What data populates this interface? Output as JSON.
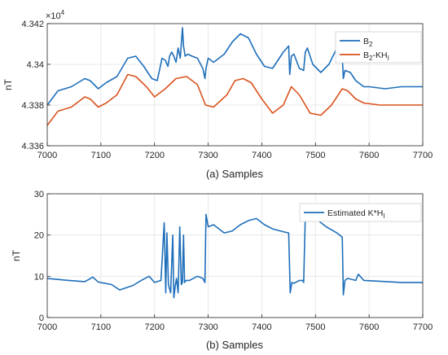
{
  "chart_data": [
    {
      "type": "line",
      "xlabel": "(a) Samples",
      "ylabel": "nT",
      "exponent_label": "×10",
      "exponent_power": "4",
      "xlim": [
        7000,
        7700
      ],
      "ylim": [
        4.336,
        4.342
      ],
      "xticks": [
        "7000",
        "7100",
        "7200",
        "7300",
        "7400",
        "7500",
        "7600",
        "7700"
      ],
      "yticks": [
        "4.336",
        "4.338",
        "4.34",
        "4.342"
      ],
      "ytick_values": [
        4.336,
        4.338,
        4.34,
        4.342
      ],
      "grid": true,
      "legend_position": "top-right",
      "series": [
        {
          "name": "B",
          "name_sub": "2",
          "name_suffix": "",
          "name_suffix_sub": "",
          "color": "#1f6fba",
          "x": [
            7000,
            7020,
            7045,
            7070,
            7080,
            7095,
            7110,
            7130,
            7150,
            7165,
            7180,
            7195,
            7205,
            7210,
            7214,
            7220,
            7225,
            7228,
            7232,
            7236,
            7240,
            7244,
            7248,
            7252,
            7254,
            7257,
            7262,
            7270,
            7280,
            7290,
            7294,
            7296,
            7300,
            7310,
            7330,
            7345,
            7360,
            7375,
            7390,
            7405,
            7420,
            7440,
            7450,
            7452,
            7455,
            7460,
            7470,
            7478,
            7481,
            7485,
            7495,
            7510,
            7525,
            7540,
            7549,
            7552,
            7555,
            7565,
            7575,
            7590,
            7600,
            7630,
            7660,
            7700
          ],
          "y": [
            4.338,
            4.3387,
            4.3389,
            4.3393,
            4.3392,
            4.3388,
            4.3391,
            4.3394,
            4.3403,
            4.3404,
            4.3399,
            4.3393,
            4.3392,
            4.3398,
            4.3403,
            4.3402,
            4.3399,
            4.3404,
            4.3406,
            4.3404,
            4.3401,
            4.3408,
            4.3403,
            4.3418,
            4.3409,
            4.3404,
            4.3405,
            4.3404,
            4.3403,
            4.3398,
            4.3393,
            4.3398,
            4.3403,
            4.3401,
            4.3405,
            4.3411,
            4.3415,
            4.3413,
            4.3405,
            4.3399,
            4.3398,
            4.3406,
            4.3409,
            4.3395,
            4.3404,
            4.3405,
            4.3398,
            4.3397,
            4.3406,
            4.3408,
            4.34,
            4.3396,
            4.34,
            4.3408,
            4.3409,
            4.3393,
            4.3397,
            4.3396,
            4.3392,
            4.3389,
            4.3389,
            4.3388,
            4.3389,
            4.3389
          ]
        },
        {
          "name": "B",
          "name_sub": "2",
          "name_suffix": "-KH",
          "name_suffix_sub": "I",
          "color": "#d9531e",
          "x": [
            7000,
            7020,
            7045,
            7070,
            7080,
            7095,
            7110,
            7130,
            7150,
            7165,
            7185,
            7200,
            7220,
            7240,
            7260,
            7280,
            7295,
            7310,
            7335,
            7350,
            7365,
            7380,
            7400,
            7420,
            7440,
            7455,
            7470,
            7490,
            7510,
            7530,
            7550,
            7560,
            7575,
            7590,
            7620,
            7660,
            7700
          ],
          "y": [
            4.337,
            4.3377,
            4.3379,
            4.3384,
            4.3383,
            4.3379,
            4.3381,
            4.3385,
            4.3395,
            4.3394,
            4.3389,
            4.3384,
            4.3388,
            4.3393,
            4.3394,
            4.339,
            4.338,
            4.3379,
            4.3385,
            4.3392,
            4.3393,
            4.3391,
            4.3383,
            4.3376,
            4.338,
            4.3389,
            4.3385,
            4.3376,
            4.3375,
            4.338,
            4.3388,
            4.3387,
            4.3383,
            4.3381,
            4.338,
            4.338,
            4.338
          ]
        }
      ]
    },
    {
      "type": "line",
      "xlabel": "(b) Samples",
      "ylabel": "nT",
      "xlim": [
        7000,
        7700
      ],
      "ylim": [
        0,
        30
      ],
      "xticks": [
        "7000",
        "7100",
        "7200",
        "7300",
        "7400",
        "7500",
        "7600",
        "7700"
      ],
      "yticks": [
        "0",
        "10",
        "20",
        "30"
      ],
      "ytick_values": [
        0,
        10,
        20,
        30
      ],
      "grid": true,
      "legend_position": "top-right",
      "series": [
        {
          "name": "Estimated K*H",
          "name_sub": "",
          "name_suffix": "",
          "name_suffix_sub": "I",
          "color": "#1f6fba",
          "x": [
            7000,
            7040,
            7070,
            7085,
            7095,
            7120,
            7135,
            7160,
            7175,
            7190,
            7200,
            7212,
            7218,
            7221,
            7223,
            7226,
            7230,
            7234,
            7236,
            7239,
            7241,
            7244,
            7247,
            7250,
            7252,
            7254,
            7256,
            7259,
            7265,
            7280,
            7290,
            7294,
            7296,
            7300,
            7310,
            7330,
            7345,
            7360,
            7375,
            7390,
            7405,
            7420,
            7440,
            7450,
            7453,
            7456,
            7460,
            7470,
            7476,
            7478,
            7481,
            7490,
            7505,
            7520,
            7540,
            7550,
            7552,
            7555,
            7560,
            7575,
            7580,
            7590,
            7620,
            7660,
            7700
          ],
          "y": [
            9.5,
            9.0,
            8.7,
            9.8,
            8.6,
            8.0,
            6.7,
            7.8,
            9.0,
            10.0,
            8.5,
            9.0,
            23.0,
            6.0,
            20.5,
            8.0,
            6.0,
            20.0,
            4.8,
            8.0,
            9.5,
            6.0,
            22.0,
            8.0,
            8.5,
            20.0,
            8.5,
            9.0,
            9.0,
            10.0,
            9.5,
            8.5,
            25.0,
            22.0,
            22.5,
            20.5,
            21.0,
            22.5,
            23.5,
            24.0,
            22.5,
            21.5,
            20.8,
            20.5,
            6.0,
            8.5,
            8.3,
            9.0,
            9.0,
            8.5,
            24.5,
            24.0,
            23.5,
            22.0,
            20.5,
            19.5,
            5.5,
            9.0,
            9.5,
            9.0,
            10.5,
            9.0,
            8.8,
            8.5,
            8.5
          ]
        }
      ]
    }
  ]
}
